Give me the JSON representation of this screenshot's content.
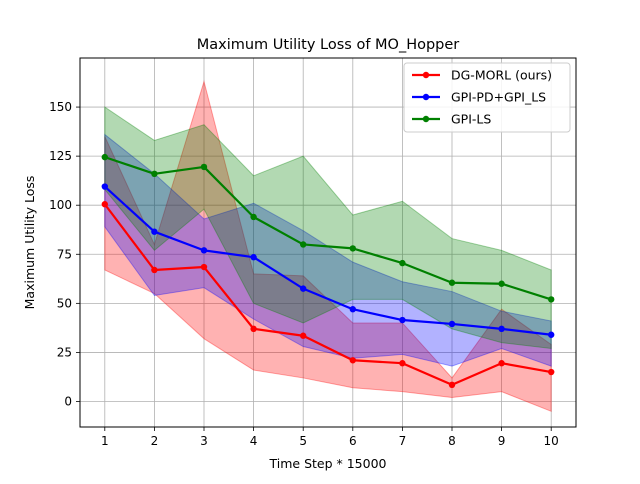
{
  "chart_data": {
    "type": "line",
    "title": "Maximum Utility Loss of MO_Hopper",
    "xlabel": "Time Step * 15000",
    "ylabel": "Maximum Utility Loss",
    "x": [
      1,
      2,
      3,
      4,
      5,
      6,
      7,
      8,
      9,
      10
    ],
    "xlim": [
      0.5,
      10.5
    ],
    "ylim": [
      -13,
      175
    ],
    "xticks": [
      1,
      2,
      3,
      4,
      5,
      6,
      7,
      8,
      9,
      10
    ],
    "yticks": [
      0,
      25,
      50,
      75,
      100,
      125,
      150
    ],
    "grid": true,
    "legend_position": "top-right",
    "series": [
      {
        "name": "DG-MORL (ours)",
        "color": "#ff0000",
        "values": [
          100.5,
          67,
          68.5,
          37,
          33.5,
          21,
          19.5,
          8.5,
          19.5,
          15
        ],
        "upper": [
          135,
          80,
          163,
          65,
          64,
          40,
          40,
          12,
          47,
          29
        ],
        "lower": [
          67,
          55,
          32,
          16,
          12,
          7,
          5,
          2,
          5,
          -5
        ]
      },
      {
        "name": "GPI-PD+GPI_LS",
        "color": "#0000ff",
        "values": [
          109.5,
          86.5,
          77,
          73.5,
          57.5,
          47,
          41.5,
          39.5,
          37,
          34
        ],
        "upper": [
          136,
          116,
          93,
          101,
          87,
          71,
          61,
          56,
          46,
          41
        ],
        "lower": [
          89,
          54,
          58,
          42,
          28,
          22,
          24,
          18,
          27,
          18
        ]
      },
      {
        "name": "GPI-LS",
        "color": "#008000",
        "values": [
          124.5,
          116,
          119.5,
          94,
          80,
          78,
          70.5,
          60.5,
          60,
          52
        ],
        "upper": [
          150,
          133,
          141,
          115,
          125,
          95,
          102,
          83,
          77,
          67
        ],
        "lower": [
          108,
          77,
          98,
          50,
          40,
          52,
          52,
          37,
          30,
          27
        ]
      }
    ]
  }
}
